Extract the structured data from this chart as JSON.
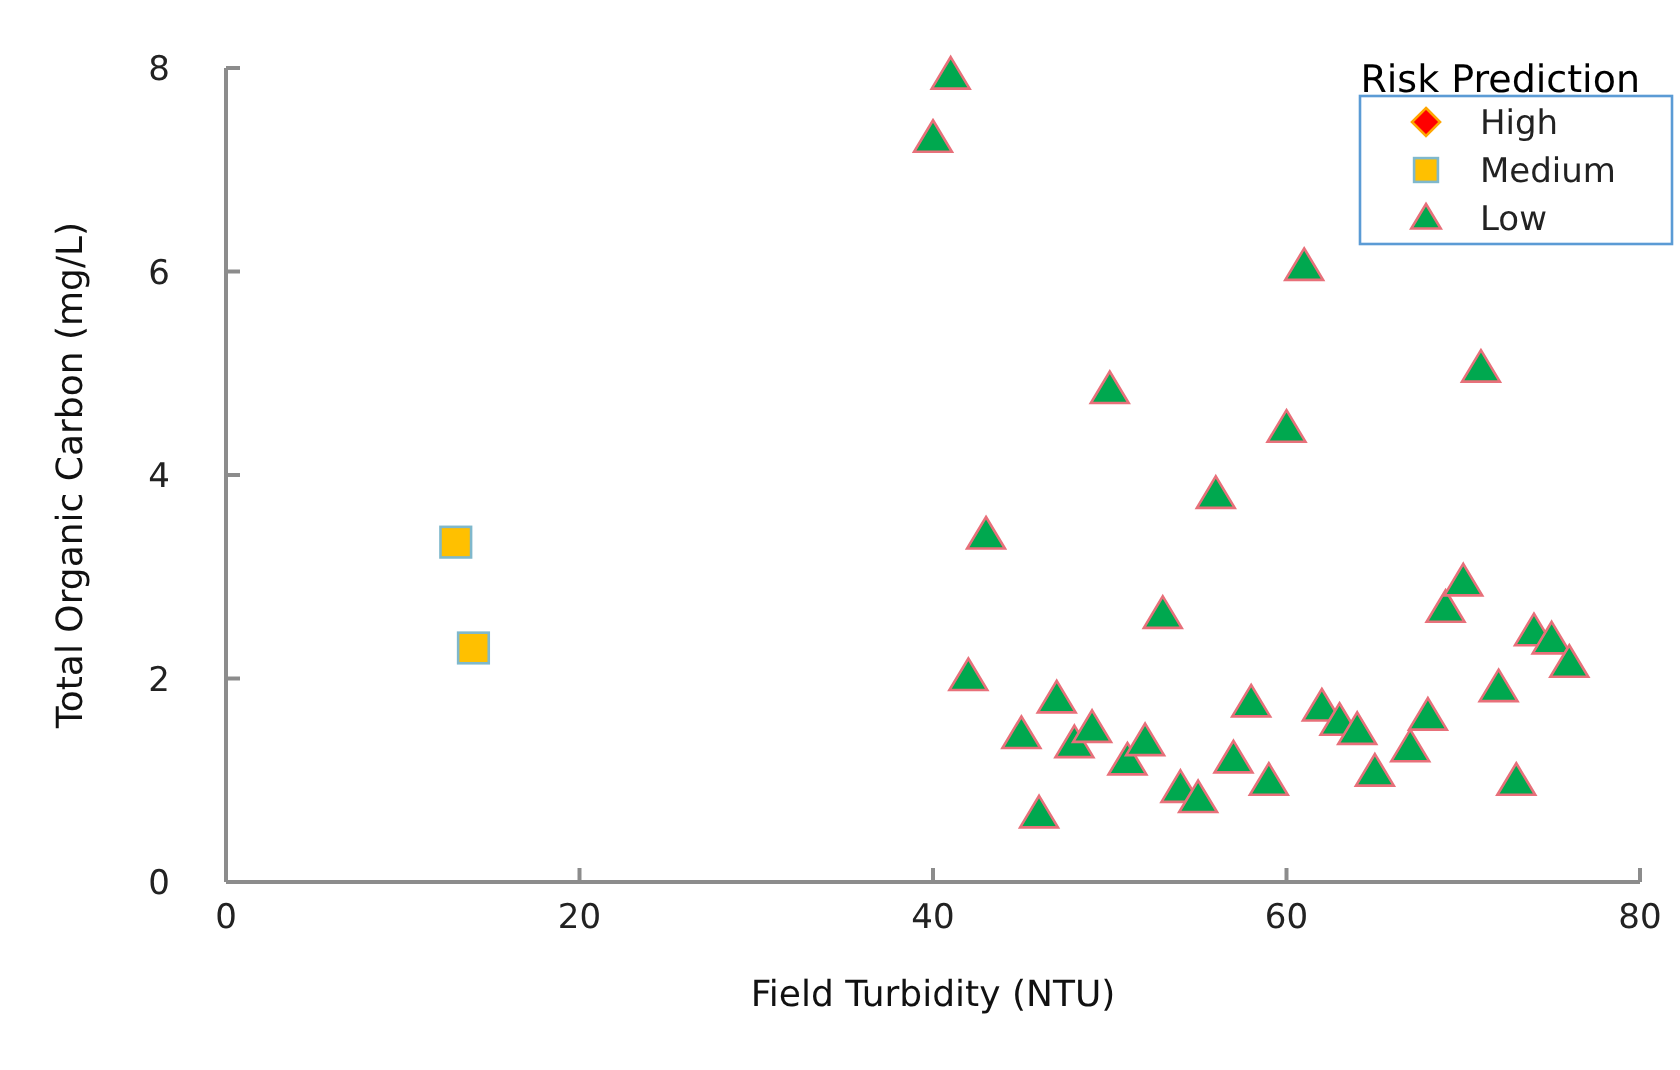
{
  "chart_data": {
    "type": "scatter",
    "xlabel": "Field Turbidity (NTU)",
    "ylabel": "Total Organic Carbon (mg/L)",
    "legend_title": "Risk Prediction",
    "legend": "top right",
    "grid": false,
    "xlim": [
      0,
      80
    ],
    "xticks": [
      0,
      20,
      40,
      60,
      80
    ],
    "ylim": [
      0,
      8
    ],
    "yticks": [
      0,
      2,
      4,
      6,
      8
    ],
    "series": [
      {
        "name": "High",
        "color": "#ff0000",
        "marker": "diamond"
      },
      {
        "name": "Medium",
        "color": "#ffc000",
        "marker": "square",
        "x": [
          13,
          14
        ],
        "values": [
          3.34,
          2.3
        ]
      },
      {
        "name": "Low",
        "color": "#00a84f",
        "marker": "triangle",
        "x": [
          40,
          41,
          42,
          43,
          45,
          46,
          47,
          48,
          49,
          50,
          51,
          52,
          53,
          54,
          55,
          56,
          57,
          58,
          59,
          60,
          61,
          62,
          63,
          64,
          65,
          67,
          68,
          69,
          70,
          71,
          72,
          73,
          74,
          75,
          76
        ],
        "values": [
          7.31,
          7.93,
          2.02,
          3.41,
          1.45,
          0.67,
          1.8,
          1.36,
          1.51,
          4.84,
          1.19,
          1.38,
          2.63,
          0.92,
          0.82,
          3.81,
          1.21,
          1.76,
          0.99,
          4.46,
          6.05,
          1.72,
          1.58,
          1.49,
          1.08,
          1.32,
          1.63,
          2.69,
          2.95,
          5.05,
          1.91,
          0.99,
          2.46,
          2.38,
          2.15
        ]
      }
    ]
  }
}
